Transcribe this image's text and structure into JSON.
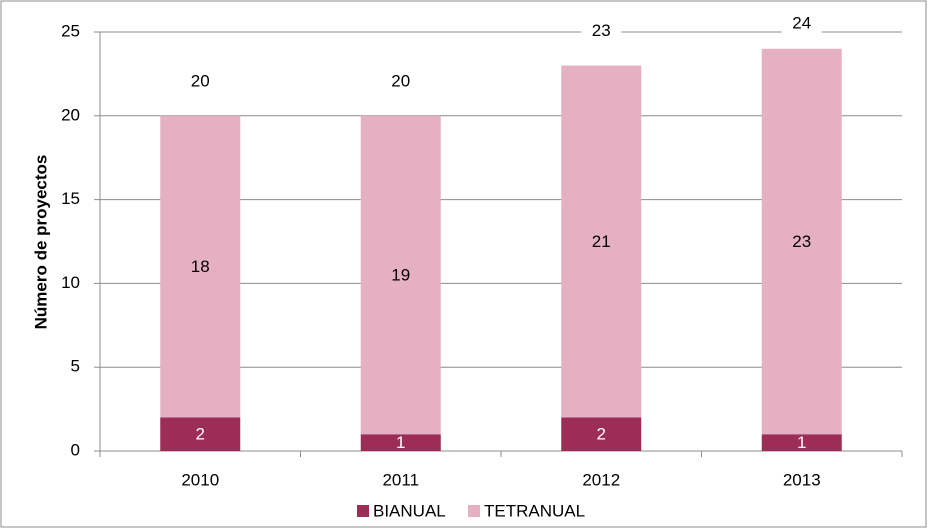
{
  "chart_data": {
    "type": "stacked_bar",
    "categories": [
      "2010",
      "2011",
      "2012",
      "2013"
    ],
    "series": [
      {
        "name": "BIANUAL",
        "color": "#9b2d56",
        "values": [
          2,
          1,
          2,
          1
        ]
      },
      {
        "name": "TETRANUAL",
        "color": "#e6b0c3",
        "values": [
          18,
          19,
          21,
          23
        ]
      }
    ],
    "totals": [
      20,
      20,
      23,
      24
    ],
    "ylabel": "Número de proyectos",
    "ylim": [
      0,
      25
    ],
    "yticks": [
      0,
      5,
      10,
      15,
      20,
      25
    ],
    "grid": true,
    "legend": "bottom"
  }
}
